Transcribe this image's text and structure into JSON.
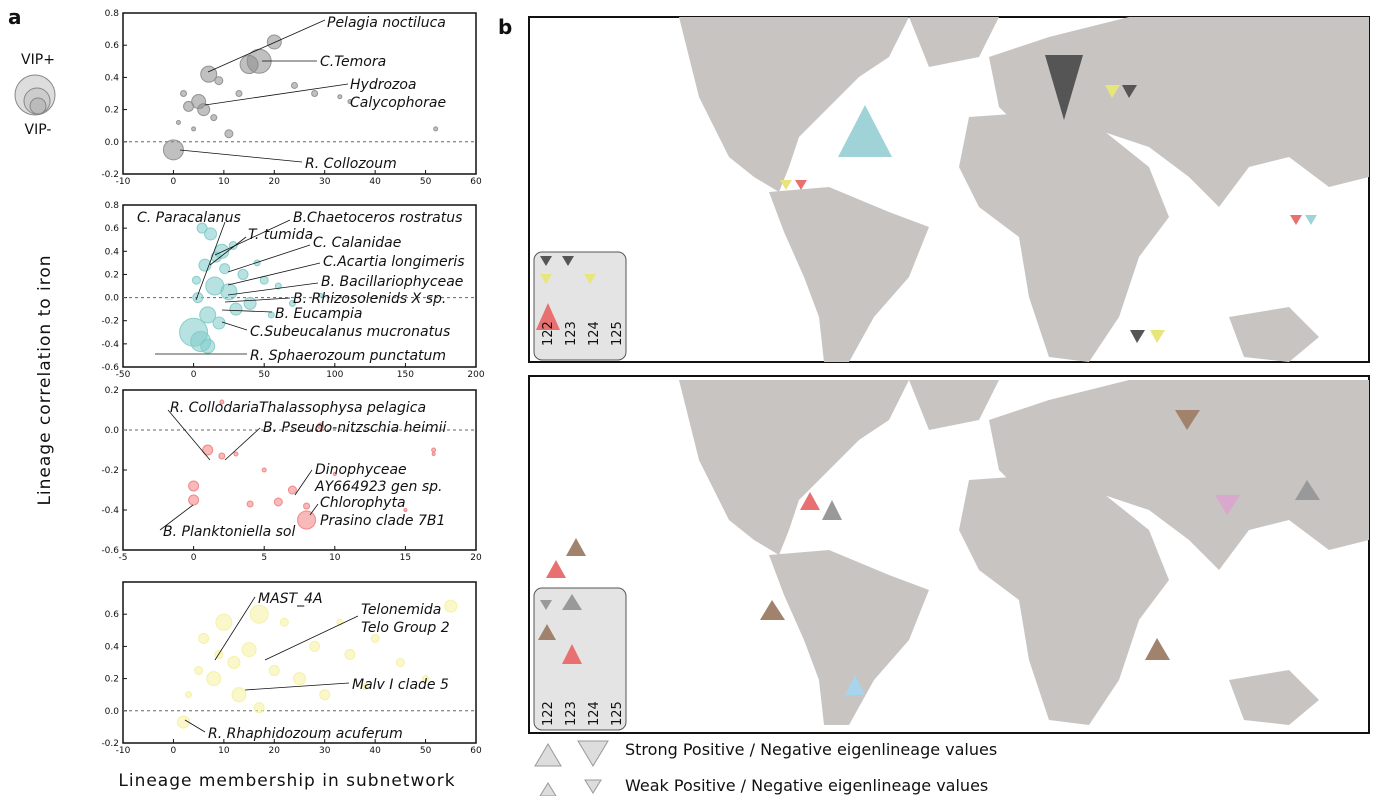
{
  "panel_labels": {
    "a": "a",
    "b": "b"
  },
  "vip_legend": {
    "plus": "VIP+",
    "minus": "VIP-"
  },
  "y_label": "Lineage correlation to iron",
  "x_label": "Lineage membership in subnetwork",
  "map_inset_stations": [
    "122",
    "123",
    "124",
    "125"
  ],
  "map_legend": {
    "strong": "Strong Positive / Negative eigenlineage values",
    "weak": "Weak Positive / Negative eigenlineage values"
  },
  "chart_data": [
    {
      "type": "scatter",
      "color": "#8c8c8c",
      "zero_line": true,
      "xlim": [
        -10,
        60
      ],
      "ylim": [
        -0.2,
        0.8
      ],
      "xticks": [
        -10,
        0,
        10,
        20,
        30,
        40,
        50,
        60
      ],
      "yticks": [
        -0.2,
        {
          "value": 0,
          "label": "0.0"
        },
        0.2,
        0.4,
        0.6,
        0.8
      ],
      "x": [
        0,
        7,
        17,
        15,
        5,
        3,
        6,
        11,
        20,
        28,
        2,
        9,
        24,
        33,
        13,
        1,
        4,
        35,
        52,
        8
      ],
      "y": [
        -0.05,
        0.42,
        0.5,
        0.48,
        0.25,
        0.22,
        0.2,
        0.05,
        0.62,
        0.3,
        0.3,
        0.38,
        0.35,
        0.28,
        0.3,
        0.12,
        0.08,
        0.25,
        0.08,
        0.15
      ],
      "sizes": [
        10,
        8,
        12,
        9,
        7,
        5,
        6,
        4,
        7,
        3,
        3,
        4,
        3,
        2,
        3,
        2,
        2,
        2,
        2,
        3
      ],
      "annotations": [
        "Pelagia noctiluca",
        "C.Temora",
        "Hydrozoa",
        "Calycophorae",
        "R. Collozoum"
      ]
    },
    {
      "type": "scatter",
      "color": "#7ecbc8",
      "zero_line": true,
      "xlim": [
        -50,
        200
      ],
      "ylim": [
        -0.6,
        0.8
      ],
      "xticks": [
        -50,
        0,
        50,
        100,
        150,
        200
      ],
      "yticks": [
        -0.6,
        -0.4,
        -0.2,
        {
          "value": 0,
          "label": "0.0"
        },
        0.2,
        0.4,
        0.6,
        0.8
      ],
      "x": [
        0,
        5,
        10,
        15,
        20,
        12,
        8,
        25,
        30,
        35,
        40,
        3,
        18,
        22,
        50,
        60,
        70,
        90,
        6,
        28,
        45,
        10,
        16,
        2,
        55
      ],
      "y": [
        -0.3,
        -0.38,
        -0.15,
        0.1,
        0.4,
        0.55,
        0.28,
        0.05,
        -0.1,
        0.2,
        -0.05,
        0,
        -0.22,
        0.25,
        0.15,
        0.1,
        -0.05,
        0.02,
        0.6,
        0.45,
        0.3,
        -0.42,
        0.35,
        0.15,
        -0.15
      ],
      "sizes": [
        14,
        10,
        8,
        9,
        7,
        6,
        6,
        8,
        6,
        5,
        6,
        5,
        6,
        5,
        4,
        3,
        3,
        2,
        5,
        4,
        3,
        7,
        5,
        4,
        3
      ],
      "annotations": [
        "C. Paracalanus",
        "B.Chaetoceros rostratus",
        "T. tumida",
        "C. Calanidae",
        "C.Acartia longimeris",
        "B. Bacillariophyceae",
        "B. Rhizosolenids X sp.",
        "B. Eucampia",
        "C.Subeucalanus mucronatus",
        "R. Sphaerozoum punctatum"
      ]
    },
    {
      "type": "scatter",
      "color": "#f08080",
      "zero_line": true,
      "xlim": [
        -5,
        20
      ],
      "ylim": [
        -0.6,
        0.2
      ],
      "xticks": [
        -5,
        0,
        5,
        10,
        15,
        20
      ],
      "yticks": [
        -0.6,
        -0.4,
        -0.2,
        {
          "value": 0,
          "label": "0.0"
        },
        0.2
      ],
      "x": [
        1,
        2,
        0,
        0,
        7,
        8,
        6,
        8,
        4,
        2,
        9,
        17,
        3,
        5,
        10,
        15,
        17
      ],
      "y": [
        -0.1,
        -0.13,
        -0.28,
        -0.35,
        -0.3,
        -0.45,
        -0.36,
        -0.38,
        -0.37,
        0.14,
        0.02,
        -0.1,
        -0.12,
        -0.2,
        -0.22,
        -0.4,
        -0.12
      ],
      "sizes": [
        5,
        3,
        5,
        5,
        4,
        9,
        4,
        3,
        3,
        2,
        3,
        2,
        2,
        2,
        1.5,
        1.5,
        1.5
      ],
      "annotations": [
        "R. CollodariaThalassophysa pelagica",
        "B. Pseudo-nitzschia heimii",
        "Dinophyceae",
        "AY664923 gen sp.",
        "Chlorophyta",
        "Prasino clade 7B1",
        "B. Planktoniella sol"
      ]
    },
    {
      "type": "scatter",
      "color": "#f5f0a0",
      "zero_line": true,
      "xlim": [
        -10,
        60
      ],
      "ylim": [
        -0.2,
        0.8
      ],
      "xticks": [
        -10,
        0,
        10,
        20,
        30,
        40,
        50,
        60
      ],
      "yticks": [
        -0.2,
        {
          "value": 0,
          "label": "0.0"
        },
        0.2,
        0.4,
        0.6
      ],
      "x": [
        2,
        8,
        13,
        10,
        17,
        15,
        12,
        6,
        20,
        25,
        30,
        35,
        40,
        45,
        55,
        28,
        5,
        22,
        17,
        9,
        3,
        33,
        50,
        38
      ],
      "y": [
        -0.07,
        0.2,
        0.1,
        0.55,
        0.6,
        0.38,
        0.3,
        0.45,
        0.25,
        0.2,
        0.1,
        0.35,
        0.45,
        0.3,
        0.65,
        0.4,
        0.25,
        0.55,
        0.02,
        0.35,
        0.1,
        0.55,
        0.2,
        0.15
      ],
      "sizes": [
        6,
        7,
        7,
        8,
        9,
        7,
        6,
        5,
        5,
        6,
        5,
        5,
        4,
        4,
        6,
        5,
        4,
        4,
        5,
        4,
        3,
        3,
        3,
        3
      ],
      "annotations": [
        "MAST_4A",
        "Telonemida",
        "Telo Group 2",
        "Malv I clade 5",
        "R. Rhaphidozoum acuferum"
      ]
    }
  ]
}
